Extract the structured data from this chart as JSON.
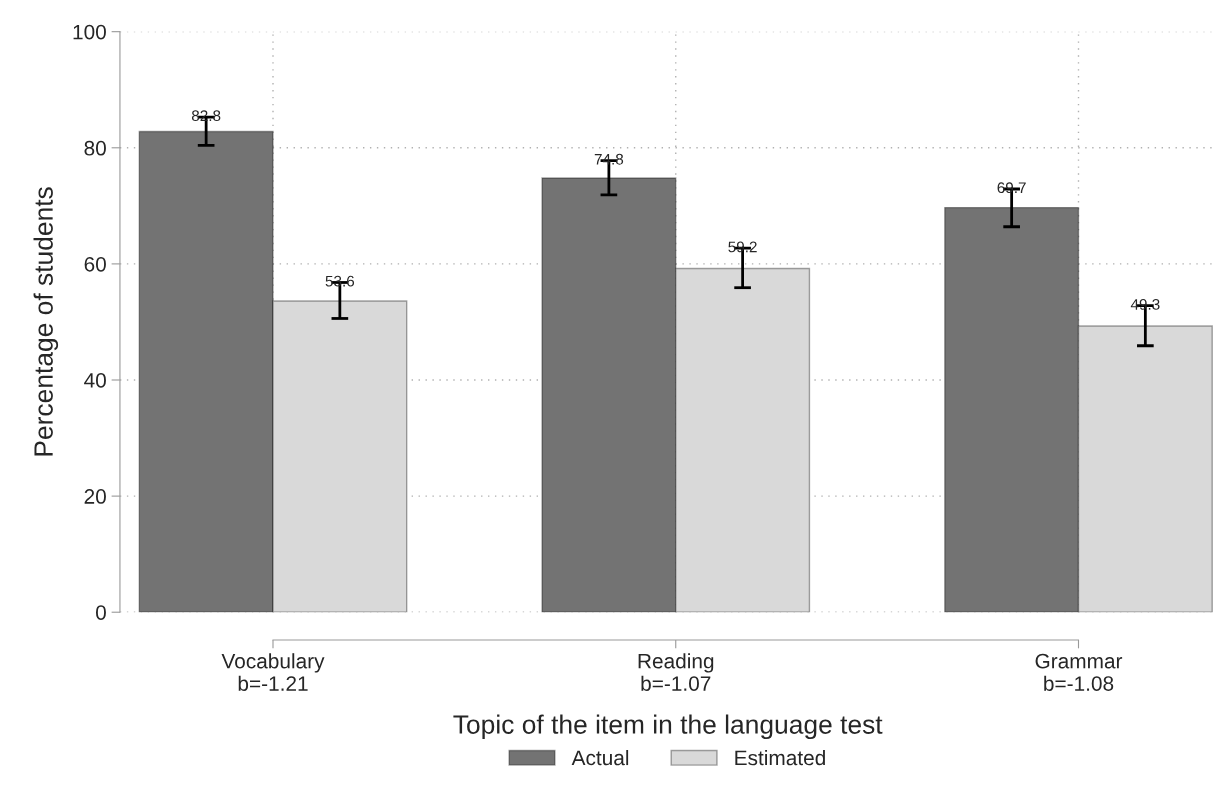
{
  "chart_data": {
    "type": "bar",
    "xlabel": "Topic of the item in the language test",
    "ylabel": "Percentage of students",
    "categories": [
      "Vocabulary\nb=-1.21",
      "Reading\nb=-1.07",
      "Grammar\nb=-1.08"
    ],
    "series": [
      {
        "name": "Actual",
        "color": "#737373",
        "values": [
          82.8,
          74.8,
          69.7
        ],
        "errors": [
          [
            80.4,
            85.3
          ],
          [
            71.9,
            77.8
          ],
          [
            66.4,
            72.9
          ]
        ]
      },
      {
        "name": "Estimated",
        "color": "#d9d9d9",
        "values": [
          53.6,
          59.2,
          49.3
        ],
        "errors": [
          [
            50.6,
            56.8
          ],
          [
            55.9,
            62.7
          ],
          [
            45.9,
            52.8
          ]
        ]
      }
    ],
    "ylim": [
      0,
      100
    ],
    "yticks": [
      0,
      20,
      40,
      60,
      80,
      100
    ],
    "grid": true,
    "legend": "bottom",
    "data_labels": true
  }
}
